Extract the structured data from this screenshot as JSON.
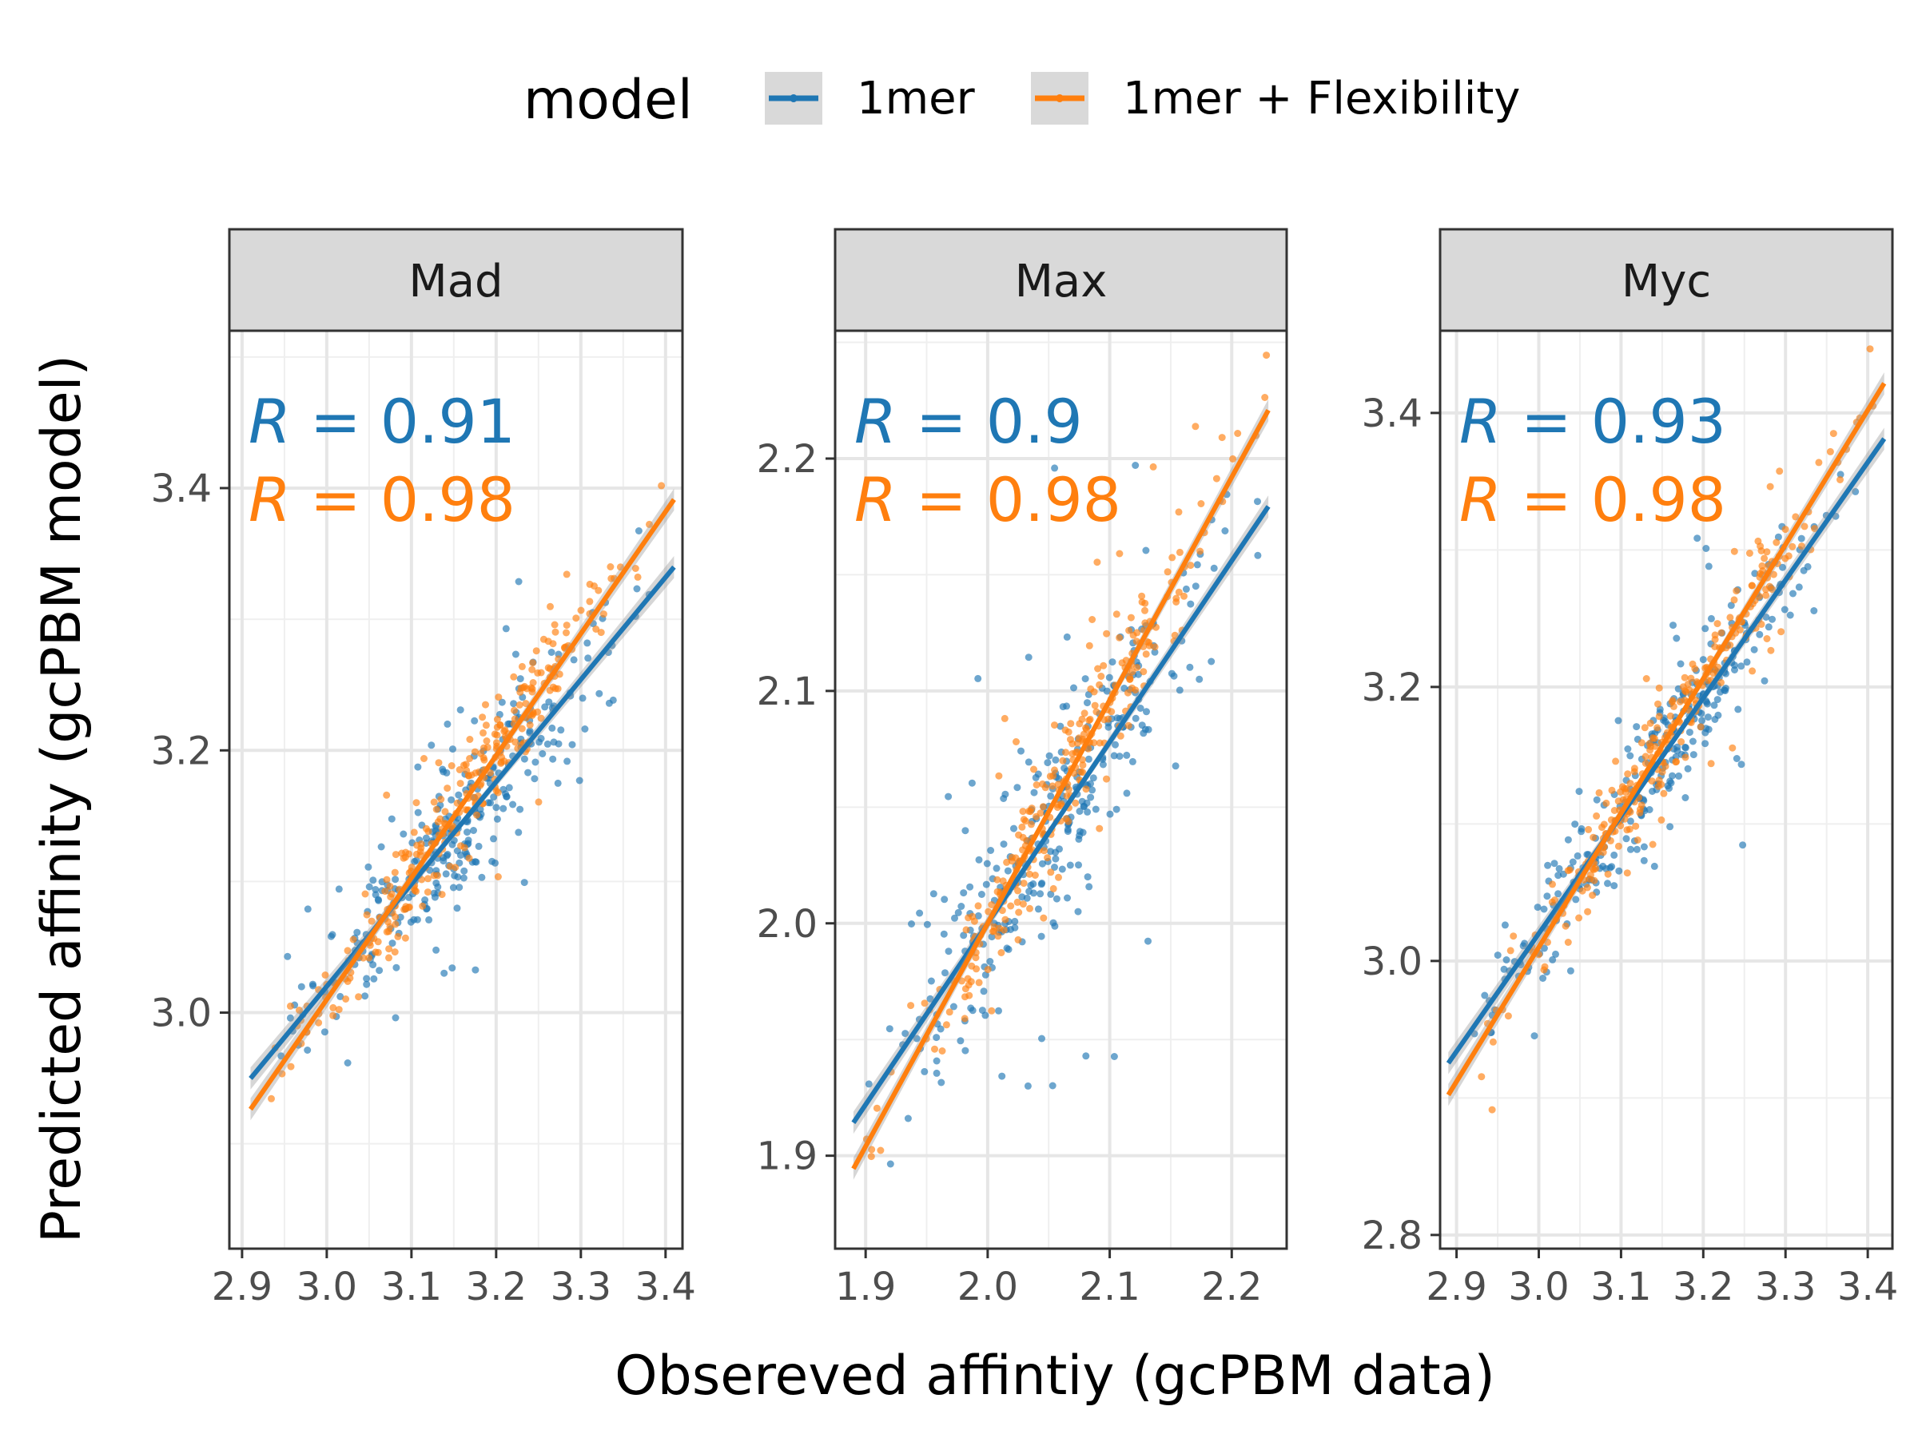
{
  "chart_data": {
    "type": "scatter",
    "xlabel": "Obsereved affintiy (gcPBM data)",
    "ylabel": "Predicted affinity (gcPBM model)",
    "legend": {
      "title": "model",
      "position": "top",
      "entries": [
        {
          "label": "1mer",
          "color": "#1f77b4"
        },
        {
          "label": "1mer + Flexibility",
          "color": "#ff7f0e"
        }
      ]
    },
    "grid": true,
    "panels": [
      {
        "name": "Mad",
        "xlim": [
          2.885,
          3.42
        ],
        "ylim": [
          2.82,
          3.52
        ],
        "xticks": [
          2.9,
          3.0,
          3.1,
          3.2,
          3.3,
          3.4
        ],
        "xtick_labels": [
          "2.9",
          "3.0",
          "3.1",
          "3.2",
          "3.3",
          "3.4"
        ],
        "yticks": [
          3.0,
          3.2,
          3.4
        ],
        "ytick_labels": [
          "3.0",
          "3.2",
          "3.4"
        ],
        "x_range": [
          2.91,
          3.41
        ],
        "series": [
          {
            "name": "1mer",
            "fit": {
              "slope": 0.78,
              "intercept": 0.68
            },
            "r_label": "R = 0.91",
            "r_value": "0.91",
            "spread": 0.028
          },
          {
            "name": "1mer + Flexibility",
            "fit": {
              "slope": 0.93,
              "intercept": 0.22
            },
            "r_label": "R = 0.98",
            "r_value": "0.98",
            "spread": 0.018
          }
        ]
      },
      {
        "name": "Max",
        "xlim": [
          1.875,
          2.245
        ],
        "ylim": [
          1.86,
          2.255
        ],
        "xticks": [
          1.9,
          2.0,
          2.1,
          2.2
        ],
        "xtick_labels": [
          "1.9",
          "2.0",
          "2.1",
          "2.2"
        ],
        "yticks": [
          1.9,
          2.0,
          2.1,
          2.2
        ],
        "ytick_labels": [
          "1.9",
          "2.0",
          "2.1",
          "2.2"
        ],
        "x_range": [
          1.89,
          2.23
        ],
        "series": [
          {
            "name": "1mer",
            "fit": {
              "slope": 0.78,
              "intercept": 0.44
            },
            "r_label": "R = 0.9",
            "r_value": "0.9",
            "spread": 0.022
          },
          {
            "name": "1mer + Flexibility",
            "fit": {
              "slope": 0.96,
              "intercept": 0.08
            },
            "r_label": "R = 0.98",
            "r_value": "0.98",
            "spread": 0.012
          }
        ]
      },
      {
        "name": "Myc",
        "xlim": [
          2.88,
          3.43
        ],
        "ylim": [
          2.79,
          3.46
        ],
        "xticks": [
          2.9,
          3.0,
          3.1,
          3.2,
          3.3,
          3.4
        ],
        "xtick_labels": [
          "2.9",
          "3.0",
          "3.1",
          "3.2",
          "3.3",
          "3.4"
        ],
        "yticks": [
          2.8,
          3.0,
          3.2,
          3.4
        ],
        "ytick_labels": [
          "2.8",
          "3.0",
          "3.2",
          "3.4"
        ],
        "x_range": [
          2.89,
          3.42
        ],
        "series": [
          {
            "name": "1mer",
            "fit": {
              "slope": 0.86,
              "intercept": 0.44
            },
            "r_label": "R = 0.93",
            "r_value": "0.93",
            "spread": 0.022
          },
          {
            "name": "1mer + Flexibility",
            "fit": {
              "slope": 0.98,
              "intercept": 0.07
            },
            "r_label": "R = 0.98",
            "r_value": "0.98",
            "spread": 0.015
          }
        ]
      }
    ]
  }
}
